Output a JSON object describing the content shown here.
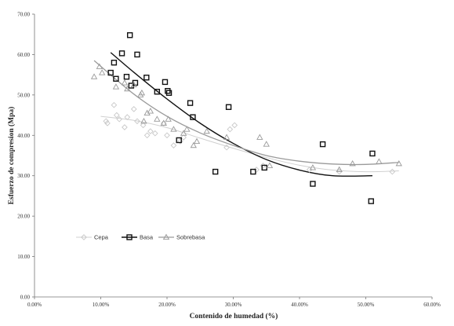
{
  "chart_data": {
    "type": "scatter",
    "xlabel": "Contenido de humedad  (%)",
    "ylabel": "Esfuerzo de compresion  (Mpa)",
    "xlim": [
      0,
      60
    ],
    "ylim": [
      0,
      70
    ],
    "x_ticks": [
      "0.00%",
      "10.00%",
      "20.00%",
      "30.00%",
      "40.00%",
      "50.00%",
      "60.00%"
    ],
    "y_ticks": [
      "0.00",
      "10.00",
      "20.00",
      "30.00",
      "40.00",
      "50.00",
      "60.00",
      "70.00"
    ],
    "x_tick_values": [
      0,
      10,
      20,
      30,
      40,
      50,
      60
    ],
    "y_tick_values": [
      0,
      10,
      20,
      30,
      40,
      50,
      60,
      70
    ],
    "grid": false,
    "legend_position": "lower-left",
    "series": [
      {
        "name": "Cepa",
        "marker": "diamond",
        "color": "#c8c8c8",
        "points": [
          [
            10.8,
            43.5
          ],
          [
            11.0,
            43.0
          ],
          [
            12.0,
            47.5
          ],
          [
            12.4,
            45.0
          ],
          [
            12.8,
            44.0
          ],
          [
            13.6,
            42.0
          ],
          [
            14.0,
            44.5
          ],
          [
            15.0,
            46.5
          ],
          [
            15.5,
            43.5
          ],
          [
            16.4,
            42.5
          ],
          [
            17.0,
            40.0
          ],
          [
            17.5,
            41.0
          ],
          [
            18.2,
            40.5
          ],
          [
            19.5,
            43.0
          ],
          [
            20.0,
            40.0
          ],
          [
            21.0,
            37.5
          ],
          [
            22.0,
            38.5
          ],
          [
            22.5,
            39.5
          ],
          [
            29.0,
            37.0
          ],
          [
            29.5,
            41.5
          ],
          [
            30.2,
            42.5
          ],
          [
            33.5,
            31.5
          ],
          [
            34.5,
            32.5
          ],
          [
            41.5,
            31.5
          ],
          [
            46.0,
            31.0
          ],
          [
            54.0,
            31.0
          ]
        ],
        "trend": [
          [
            10,
            44.7
          ],
          [
            15,
            43.7
          ],
          [
            20,
            41.9
          ],
          [
            25,
            39.3
          ],
          [
            30,
            36.8
          ],
          [
            35,
            34.5
          ],
          [
            40,
            32.6
          ],
          [
            45,
            31.4
          ],
          [
            50,
            31.0
          ],
          [
            55,
            31.2
          ]
        ]
      },
      {
        "name": "Basa",
        "marker": "square",
        "color": "#111111",
        "points": [
          [
            11.5,
            55.5
          ],
          [
            12.0,
            58.0
          ],
          [
            12.3,
            54.0
          ],
          [
            13.2,
            60.3
          ],
          [
            13.9,
            54.5
          ],
          [
            14.4,
            64.8
          ],
          [
            14.6,
            52.3
          ],
          [
            15.2,
            53.0
          ],
          [
            15.5,
            60.0
          ],
          [
            16.9,
            54.3
          ],
          [
            18.5,
            50.8
          ],
          [
            19.7,
            53.2
          ],
          [
            20.1,
            51.0
          ],
          [
            20.3,
            50.5
          ],
          [
            21.8,
            38.8
          ],
          [
            23.5,
            48.0
          ],
          [
            23.9,
            44.5
          ],
          [
            27.3,
            31.0
          ],
          [
            29.3,
            47.0
          ],
          [
            33.0,
            31.0
          ],
          [
            34.7,
            32.0
          ],
          [
            42.0,
            28.0
          ],
          [
            43.5,
            37.8
          ],
          [
            51.0,
            35.5
          ],
          [
            50.8,
            23.7
          ]
        ],
        "trend": [
          [
            11.5,
            60.5
          ],
          [
            15,
            55.6
          ],
          [
            20,
            49.0
          ],
          [
            25,
            43.0
          ],
          [
            30,
            38.0
          ],
          [
            35,
            34.0
          ],
          [
            40,
            31.4
          ],
          [
            45,
            30.0
          ],
          [
            51,
            30.0
          ]
        ]
      },
      {
        "name": "Sobrebasa",
        "marker": "triangle",
        "color": "#999999",
        "points": [
          [
            9.0,
            54.5
          ],
          [
            9.8,
            57.0
          ],
          [
            10.2,
            55.5
          ],
          [
            12.3,
            52.0
          ],
          [
            13.6,
            53.0
          ],
          [
            14.0,
            51.5
          ],
          [
            15.0,
            52.5
          ],
          [
            16.0,
            50.0
          ],
          [
            16.2,
            50.5
          ],
          [
            16.5,
            43.5
          ],
          [
            17.0,
            45.5
          ],
          [
            17.5,
            46.0
          ],
          [
            18.5,
            44.0
          ],
          [
            19.5,
            43.0
          ],
          [
            20.2,
            44.0
          ],
          [
            21.0,
            41.5
          ],
          [
            22.5,
            40.5
          ],
          [
            23.0,
            41.5
          ],
          [
            24.0,
            37.5
          ],
          [
            24.5,
            38.5
          ],
          [
            26.0,
            41.0
          ],
          [
            29.0,
            39.5
          ],
          [
            34.0,
            39.5
          ],
          [
            35.0,
            37.8
          ],
          [
            35.5,
            32.5
          ],
          [
            42.0,
            32.0
          ],
          [
            46.0,
            31.5
          ],
          [
            48.0,
            33.0
          ],
          [
            52.0,
            33.5
          ],
          [
            55.0,
            33.0
          ]
        ],
        "trend": [
          [
            9,
            58.5
          ],
          [
            15,
            50.2
          ],
          [
            20,
            44.7
          ],
          [
            25,
            40.6
          ],
          [
            30,
            37.5
          ],
          [
            35,
            35.0
          ],
          [
            40,
            33.6
          ],
          [
            45,
            32.9
          ],
          [
            50,
            32.8
          ],
          [
            55,
            33.3
          ]
        ]
      }
    ]
  }
}
